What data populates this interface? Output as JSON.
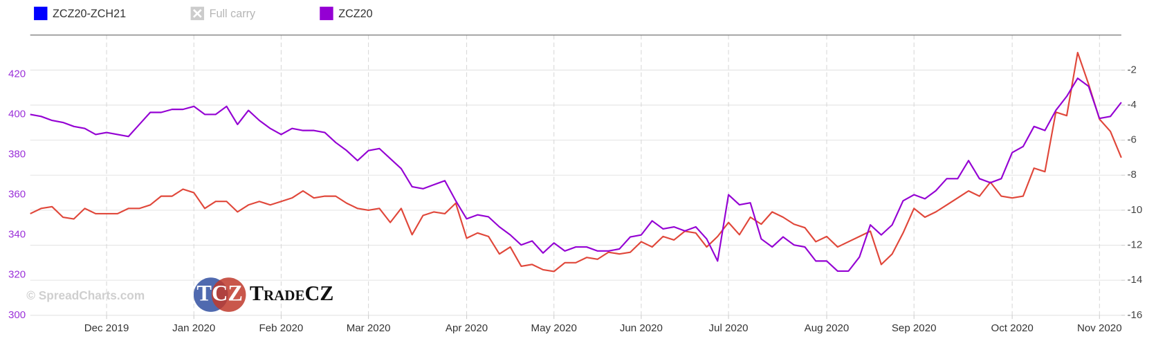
{
  "chart_data": {
    "type": "line",
    "categories": [
      null,
      null,
      null,
      null,
      null,
      null,
      null,
      "Dec 2019",
      null,
      null,
      null,
      null,
      null,
      null,
      null,
      "Jan 2020",
      null,
      null,
      null,
      null,
      null,
      null,
      null,
      "Feb 2020",
      null,
      null,
      null,
      null,
      null,
      null,
      null,
      "Mar 2020",
      null,
      null,
      null,
      null,
      null,
      null,
      null,
      null,
      "Apr 2020",
      null,
      null,
      null,
      null,
      null,
      null,
      null,
      "May 2020",
      null,
      null,
      null,
      null,
      null,
      null,
      null,
      "Jun 2020",
      null,
      null,
      null,
      null,
      null,
      null,
      null,
      "Jul 2020",
      null,
      null,
      null,
      null,
      null,
      null,
      null,
      null,
      "Aug 2020",
      null,
      null,
      null,
      null,
      null,
      null,
      null,
      "Sep 2020",
      null,
      null,
      null,
      null,
      null,
      null,
      null,
      null,
      "Oct 2020",
      null,
      null,
      null,
      null,
      null,
      null,
      null,
      "Nov 2020",
      null,
      null
    ],
    "series": [
      {
        "name": "ZCZ20-ZCH21",
        "color": "#e0473a",
        "legend_color": "#0000ff",
        "axis": "y2",
        "values": [
          -10.2,
          -9.9,
          -9.8,
          -10.4,
          -10.5,
          -9.9,
          -10.2,
          -10.2,
          -10.2,
          -9.9,
          -9.9,
          -9.7,
          -9.2,
          -9.2,
          -8.8,
          -9.0,
          -9.9,
          -9.5,
          -9.5,
          -10.1,
          -9.7,
          -9.5,
          -9.7,
          -9.5,
          -9.3,
          -8.9,
          -9.3,
          -9.2,
          -9.2,
          -9.6,
          -9.9,
          -10.0,
          -9.9,
          -10.7,
          -9.9,
          -11.4,
          -10.3,
          -10.1,
          -10.2,
          -9.6,
          -11.6,
          -11.3,
          -11.5,
          -12.5,
          -12.1,
          -13.2,
          -13.1,
          -13.4,
          -13.5,
          -13.0,
          -13.0,
          -12.7,
          -12.8,
          -12.4,
          -12.5,
          -12.4,
          -11.8,
          -12.1,
          -11.5,
          -11.7,
          -11.2,
          -11.3,
          -12.1,
          -11.5,
          -10.7,
          -11.4,
          -10.4,
          -10.8,
          -10.1,
          -10.4,
          -10.8,
          -11.0,
          -11.8,
          -11.5,
          -12.1,
          -11.8,
          -11.5,
          -11.2,
          -13.1,
          -12.5,
          -11.3,
          -9.9,
          -10.4,
          -10.1,
          -9.7,
          -9.3,
          -8.9,
          -9.2,
          -8.4,
          -9.2,
          -9.3,
          -9.2,
          -7.6,
          -7.8,
          -4.4,
          -4.6,
          -1.0,
          -2.8,
          -4.8,
          -5.5,
          -7.0
        ]
      },
      {
        "name": "Full carry",
        "color": "#cccccc",
        "visible": false
      },
      {
        "name": "ZCZ20",
        "color": "#9400d3",
        "axis": "y",
        "values": [
          400,
          399,
          397,
          396,
          394,
          393,
          390,
          391,
          390,
          389,
          395,
          401,
          401,
          402.5,
          402.5,
          404,
          400,
          400,
          404,
          395,
          402,
          397,
          393,
          390,
          393,
          392,
          392,
          391,
          386,
          382,
          377,
          382,
          383,
          378,
          373,
          364,
          363,
          365,
          367,
          357,
          348,
          350,
          349,
          344,
          340,
          335,
          337,
          331,
          336,
          332,
          334,
          334,
          332,
          332,
          333,
          339,
          340,
          347,
          343,
          344,
          342,
          344,
          338,
          327,
          360,
          355,
          356,
          338,
          334,
          339,
          335,
          334,
          327,
          327,
          322,
          322,
          329,
          345,
          340,
          345,
          357,
          360,
          358,
          362,
          368,
          368,
          377,
          368,
          366,
          368,
          381,
          384,
          394,
          392,
          402,
          409,
          418,
          414,
          398,
          399,
          406
        ]
      }
    ],
    "ylim": [
      300,
      439.5
    ],
    "yticks": [
      300,
      320,
      340,
      360,
      380,
      400,
      420
    ],
    "y_tick_color": "#9b30d9",
    "y2lim": [
      -16,
      0
    ],
    "y2ticks": [
      -16,
      -14,
      -12,
      -10,
      -8,
      -6,
      -4,
      -2
    ],
    "grid": true,
    "legend": "top",
    "watermark": "© SpreadCharts.com",
    "logo": {
      "mark": "TCZ",
      "text": "TradeCZ"
    }
  }
}
